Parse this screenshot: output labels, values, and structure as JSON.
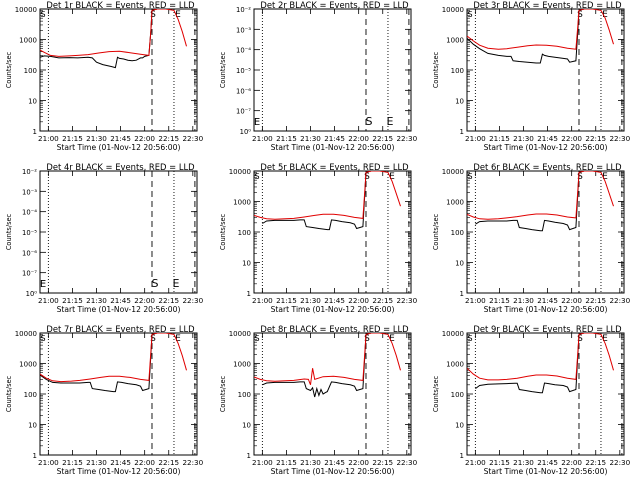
{
  "colors": {
    "events": "#000000",
    "lld": "#e00000",
    "background": "#ffffff"
  },
  "shared": {
    "x_tick_labels": [
      "21:00",
      "21:15",
      "21:30",
      "21:45",
      "22:00",
      "22:15",
      "22:30"
    ],
    "x_label": "Start Time (01-Nov-12 20:56:00)",
    "y_label": "Counts/sec",
    "marker_S": "S",
    "marker_E": "E",
    "marker_S_small": "S",
    "marker_E_small": "E",
    "y_ticks_log": [
      "1",
      "10",
      "100",
      "1000",
      "10000"
    ],
    "y_ticks_empty": [
      "10⁰",
      "10⁻⁷",
      "10⁻⁶",
      "10⁻⁵",
      "10⁻⁴",
      "10⁻³",
      "10⁻²"
    ]
  },
  "chart_data": [
    {
      "type": "line",
      "title": "Det 1r BLACK = Events, RED = LLD",
      "xlabel": "Start Time (01-Nov-12 20:56:00)",
      "ylabel": "Counts/sec",
      "x_ticks": [
        "21:00",
        "21:15",
        "21:30",
        "21:45",
        "22:00",
        "22:15",
        "22:30"
      ],
      "y_scale": "log",
      "ylim": [
        1,
        10000
      ],
      "empty": false,
      "series": [
        {
          "name": "Events",
          "x": [
            0,
            2,
            5,
            9,
            14,
            18,
            23,
            25,
            27,
            30,
            34,
            36,
            37,
            38,
            40,
            42,
            44,
            46,
            48,
            49,
            50,
            52,
            53,
            53.5,
            56
          ],
          "y": [
            260,
            290,
            280,
            250,
            255,
            250,
            260,
            250,
            180,
            150,
            130,
            120,
            260,
            240,
            230,
            210,
            200,
            210,
            250,
            250,
            280,
            300,
            2000,
            9000,
            10000
          ]
        },
        {
          "name": "LLD",
          "x": [
            0,
            2,
            5,
            9,
            14,
            18,
            23,
            28,
            33,
            38,
            43,
            48,
            52,
            53,
            53.5,
            56,
            60,
            64,
            66,
            68,
            70
          ],
          "y": [
            450,
            380,
            300,
            280,
            290,
            300,
            320,
            360,
            400,
            410,
            370,
            330,
            300,
            2000,
            9000,
            10000,
            10000,
            9000,
            4500,
            1800,
            600
          ]
        }
      ],
      "vlines": [
        {
          "x": 4,
          "style": "dotted"
        },
        {
          "x": 53.5,
          "style": "dashed"
        },
        {
          "x": 64,
          "style": "dotted"
        },
        {
          "x": 74,
          "style": "dashed"
        }
      ]
    },
    {
      "type": "line",
      "title": "Det 2r BLACK = Events, RED = LLD",
      "xlabel": "Start Time (01-Nov-12 20:56:00)",
      "ylabel": "Counts/sec",
      "x_ticks": [
        "21:00",
        "21:15",
        "21:30",
        "21:45",
        "22:00",
        "22:15",
        "22:30"
      ],
      "y_scale": "log",
      "empty": true,
      "series": [],
      "vlines": [
        {
          "x": 4,
          "style": "dotted"
        },
        {
          "x": 53.5,
          "style": "dashed"
        },
        {
          "x": 64,
          "style": "dotted"
        },
        {
          "x": 74,
          "style": "dashed"
        }
      ]
    },
    {
      "type": "line",
      "title": "Det 3r BLACK = Events, RED = LLD",
      "xlabel": "Start Time (01-Nov-12 20:56:00)",
      "ylabel": "Counts/sec",
      "x_ticks": [
        "21:00",
        "21:15",
        "21:30",
        "21:45",
        "22:00",
        "22:15",
        "22:30"
      ],
      "y_scale": "log",
      "ylim": [
        1,
        10000
      ],
      "empty": false,
      "series": [
        {
          "name": "Events",
          "x": [
            0,
            3,
            6,
            10,
            15,
            19,
            21,
            22,
            25,
            29,
            33,
            35,
            36,
            37,
            39,
            42,
            46,
            48,
            49,
            52,
            53,
            53.5,
            56
          ],
          "y": [
            1100,
            700,
            500,
            350,
            300,
            280,
            280,
            200,
            190,
            180,
            170,
            170,
            330,
            300,
            280,
            260,
            240,
            230,
            180,
            200,
            2000,
            9000,
            10000
          ]
        },
        {
          "name": "LLD",
          "x": [
            0,
            3,
            6,
            10,
            15,
            19,
            24,
            29,
            33,
            38,
            43,
            48,
            52,
            53,
            53.5,
            56,
            60,
            64,
            66,
            68,
            70
          ],
          "y": [
            1300,
            900,
            650,
            520,
            480,
            500,
            560,
            620,
            660,
            650,
            600,
            520,
            480,
            3000,
            9000,
            10000,
            10000,
            9000,
            5000,
            2000,
            700
          ]
        }
      ],
      "vlines": [
        {
          "x": 4,
          "style": "dotted"
        },
        {
          "x": 53.5,
          "style": "dashed"
        },
        {
          "x": 64,
          "style": "dotted"
        },
        {
          "x": 74,
          "style": "dashed"
        }
      ]
    },
    {
      "type": "line",
      "title": "Det 4r BLACK = Events, RED = LLD",
      "xlabel": "Start Time (01-Nov-12 20:56:00)",
      "ylabel": "Counts/sec",
      "x_ticks": [
        "21:00",
        "21:15",
        "21:30",
        "21:45",
        "22:00",
        "22:15",
        "22:30"
      ],
      "y_scale": "log",
      "empty": true,
      "series": [],
      "vlines": [
        {
          "x": 4,
          "style": "dotted"
        },
        {
          "x": 53.5,
          "style": "dashed"
        },
        {
          "x": 64,
          "style": "dotted"
        },
        {
          "x": 74,
          "style": "dashed"
        }
      ]
    },
    {
      "type": "line",
      "title": "Det 5r BLACK = Events, RED = LLD",
      "xlabel": "Start Time (01-Nov-12 20:56:00)",
      "ylabel": "Counts/sec",
      "x_ticks": [
        "21:00",
        "21:15",
        "21:30",
        "21:45",
        "22:00",
        "22:15",
        "22:30"
      ],
      "y_scale": "log",
      "ylim": [
        1,
        10000
      ],
      "empty": false,
      "series": [
        {
          "name": "Events",
          "x": [
            4,
            6,
            10,
            15,
            19,
            22,
            24,
            25,
            28,
            31,
            35,
            36,
            37,
            39,
            42,
            46,
            48,
            49,
            52,
            53,
            53.5,
            56
          ],
          "y": [
            190,
            230,
            240,
            240,
            240,
            250,
            250,
            150,
            140,
            130,
            120,
            120,
            250,
            240,
            220,
            200,
            180,
            130,
            150,
            2000,
            9000,
            10000
          ]
        },
        {
          "name": "LLD",
          "x": [
            0,
            3,
            6,
            10,
            15,
            19,
            24,
            29,
            33,
            38,
            43,
            48,
            52,
            53,
            53.5,
            56,
            60,
            64,
            66,
            68,
            70
          ],
          "y": [
            350,
            300,
            270,
            260,
            270,
            280,
            310,
            350,
            380,
            380,
            350,
            300,
            280,
            2500,
            9000,
            10000,
            10000,
            9000,
            4500,
            1800,
            700
          ]
        }
      ],
      "vlines": [
        {
          "x": 4,
          "style": "dotted"
        },
        {
          "x": 53.5,
          "style": "dashed"
        },
        {
          "x": 64,
          "style": "dotted"
        },
        {
          "x": 74,
          "style": "dashed"
        }
      ]
    },
    {
      "type": "line",
      "title": "Det 6r BLACK = Events, RED = LLD",
      "xlabel": "Start Time (01-Nov-12 20:56:00)",
      "ylabel": "Counts/sec",
      "x_ticks": [
        "21:00",
        "21:15",
        "21:30",
        "21:45",
        "22:00",
        "22:15",
        "22:30"
      ],
      "y_scale": "log",
      "ylim": [
        1,
        10000
      ],
      "empty": false,
      "series": [
        {
          "name": "Events",
          "x": [
            4,
            6,
            10,
            15,
            19,
            22,
            24,
            25,
            28,
            31,
            35,
            36,
            37,
            39,
            42,
            46,
            48,
            49,
            52,
            53,
            53.5,
            56
          ],
          "y": [
            180,
            220,
            230,
            230,
            230,
            240,
            240,
            140,
            130,
            120,
            110,
            110,
            240,
            230,
            210,
            190,
            170,
            120,
            140,
            2000,
            9000,
            10000
          ]
        },
        {
          "name": "LLD",
          "x": [
            0,
            3,
            6,
            10,
            15,
            19,
            24,
            29,
            33,
            38,
            43,
            48,
            52,
            53,
            53.5,
            56,
            60,
            64,
            66,
            68,
            70
          ],
          "y": [
            380,
            310,
            270,
            260,
            270,
            290,
            320,
            360,
            390,
            390,
            360,
            310,
            290,
            2500,
            9000,
            10000,
            10000,
            9000,
            4500,
            1800,
            700
          ]
        }
      ],
      "vlines": [
        {
          "x": 4,
          "style": "dotted"
        },
        {
          "x": 53.5,
          "style": "dashed"
        },
        {
          "x": 64,
          "style": "dotted"
        },
        {
          "x": 74,
          "style": "dashed"
        }
      ]
    },
    {
      "type": "line",
      "title": "Det 7r BLACK = Events, RED = LLD",
      "xlabel": "Start Time (01-Nov-12 20:56:00)",
      "ylabel": "Counts/sec",
      "x_ticks": [
        "21:00",
        "21:15",
        "21:30",
        "21:45",
        "22:00",
        "22:15",
        "22:30"
      ],
      "y_scale": "log",
      "ylim": [
        1,
        10000
      ],
      "empty": false,
      "series": [
        {
          "name": "Events",
          "x": [
            0,
            3,
            6,
            10,
            15,
            19,
            23,
            24,
            25,
            28,
            31,
            35,
            36,
            37,
            39,
            42,
            46,
            48,
            49,
            52,
            53,
            53.5,
            56
          ],
          "y": [
            420,
            300,
            240,
            230,
            230,
            230,
            240,
            240,
            150,
            140,
            130,
            120,
            120,
            250,
            240,
            220,
            200,
            180,
            130,
            150,
            2000,
            9000,
            10000
          ]
        },
        {
          "name": "LLD",
          "x": [
            0,
            3,
            6,
            10,
            15,
            19,
            24,
            29,
            33,
            38,
            43,
            48,
            52,
            53,
            53.5,
            56,
            60,
            64,
            66,
            68,
            70
          ],
          "y": [
            450,
            330,
            270,
            255,
            265,
            280,
            310,
            350,
            380,
            380,
            350,
            300,
            280,
            2500,
            9000,
            10000,
            10000,
            9000,
            4500,
            1800,
            600
          ]
        }
      ],
      "vlines": [
        {
          "x": 4,
          "style": "dotted"
        },
        {
          "x": 53.5,
          "style": "dashed"
        },
        {
          "x": 64,
          "style": "dotted"
        },
        {
          "x": 74,
          "style": "dashed"
        }
      ]
    },
    {
      "type": "line",
      "title": "Det 8r BLACK = Events, RED = LLD",
      "xlabel": "Start Time (01-Nov-12 20:56:00)",
      "ylabel": "Counts/sec",
      "x_ticks": [
        "21:00",
        "21:15",
        "21:30",
        "21:45",
        "22:00",
        "22:15",
        "22:30"
      ],
      "y_scale": "log",
      "ylim": [
        1,
        10000
      ],
      "empty": false,
      "series": [
        {
          "name": "Events",
          "x": [
            4,
            6,
            10,
            15,
            19,
            22,
            24,
            25,
            27,
            28,
            29,
            30,
            31,
            32,
            33,
            34,
            35,
            37,
            39,
            42,
            46,
            48,
            49,
            52,
            53,
            53.5,
            56
          ],
          "y": [
            200,
            230,
            240,
            240,
            240,
            250,
            250,
            150,
            130,
            160,
            80,
            150,
            90,
            140,
            100,
            110,
            120,
            250,
            240,
            220,
            200,
            180,
            130,
            150,
            2000,
            9000,
            10000
          ]
        },
        {
          "name": "LLD",
          "x": [
            0,
            3,
            6,
            10,
            15,
            19,
            24,
            26,
            27,
            28,
            29,
            33,
            38,
            43,
            48,
            52,
            53,
            53.5,
            56,
            60,
            64,
            66,
            68,
            70
          ],
          "y": [
            360,
            300,
            270,
            260,
            270,
            280,
            310,
            300,
            200,
            700,
            300,
            370,
            380,
            350,
            300,
            280,
            2500,
            9000,
            10000,
            10000,
            9000,
            4500,
            1800,
            600
          ]
        }
      ],
      "vlines": [
        {
          "x": 4,
          "style": "dotted"
        },
        {
          "x": 53.5,
          "style": "dashed"
        },
        {
          "x": 64,
          "style": "dotted"
        },
        {
          "x": 74,
          "style": "dashed"
        }
      ]
    },
    {
      "type": "line",
      "title": "Det 9r BLACK = Events, RED = LLD",
      "xlabel": "Start Time (01-Nov-12 20:56:00)",
      "ylabel": "Counts/sec",
      "x_ticks": [
        "21:00",
        "21:15",
        "21:30",
        "21:45",
        "22:00",
        "22:15",
        "22:30"
      ],
      "y_scale": "log",
      "ylim": [
        1,
        10000
      ],
      "empty": false,
      "series": [
        {
          "name": "Events",
          "x": [
            4,
            6,
            10,
            15,
            19,
            23,
            24,
            25,
            28,
            31,
            35,
            36,
            37,
            39,
            42,
            46,
            48,
            49,
            52,
            53,
            53.5,
            56
          ],
          "y": [
            150,
            190,
            210,
            215,
            220,
            225,
            225,
            140,
            130,
            120,
            110,
            110,
            230,
            220,
            200,
            190,
            170,
            120,
            140,
            2000,
            9000,
            10000
          ]
        },
        {
          "name": "LLD",
          "x": [
            0,
            3,
            6,
            10,
            15,
            19,
            24,
            29,
            33,
            38,
            43,
            48,
            52,
            53,
            53.5,
            56,
            60,
            64,
            66,
            68,
            70
          ],
          "y": [
            700,
            450,
            330,
            290,
            290,
            300,
            330,
            380,
            420,
            420,
            390,
            330,
            300,
            2500,
            9000,
            10000,
            10000,
            9000,
            4500,
            1800,
            600
          ]
        }
      ],
      "vlines": [
        {
          "x": 4,
          "style": "dotted"
        },
        {
          "x": 53.5,
          "style": "dashed"
        },
        {
          "x": 64,
          "style": "dotted"
        },
        {
          "x": 74,
          "style": "dashed"
        }
      ]
    }
  ]
}
